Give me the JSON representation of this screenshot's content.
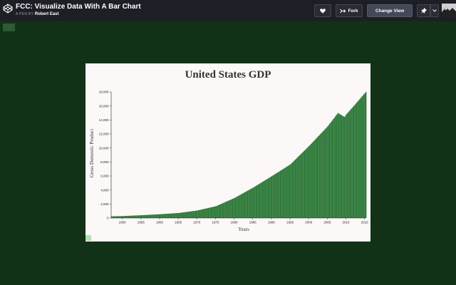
{
  "header": {
    "title": "FCC: Visualize Data With A Bar Chart",
    "byline_prefix": "A PEN BY",
    "author": "Robert East",
    "buttons": {
      "fork": "Fork",
      "change_view": "Change View"
    }
  },
  "colors": {
    "background": "#113216",
    "topbar": "#1e1f26",
    "bar": "#2e7a3a",
    "card": "#fdf8f8"
  },
  "icons": {
    "logo": "codepen-logo-icon",
    "heart": "heart-icon",
    "fork": "fork-icon",
    "pin": "pin-icon",
    "caret": "chevron-down-icon",
    "avatar": "user-avatar-icon"
  },
  "chart_data": {
    "type": "bar",
    "title": "United States GDP",
    "xlabel": "Years",
    "ylabel": "Gross Domestic Product",
    "xlim": [
      1947,
      2015.25
    ],
    "ylim": [
      0,
      18000
    ],
    "y_ticks": [
      "0",
      "2,000",
      "4,000",
      "6,000",
      "8,000",
      "10,000",
      "12,000",
      "14,000",
      "16,000",
      "18,000"
    ],
    "x_ticks": [
      "1950",
      "1955",
      "1960",
      "1965",
      "1970",
      "1975",
      "1980",
      "1985",
      "1990",
      "1995",
      "2000",
      "2005",
      "2010",
      "2015"
    ],
    "series": [
      {
        "x": [
          1947,
          1950,
          1955,
          1960,
          1965,
          1970,
          1975,
          1980,
          1985,
          1990,
          1995,
          2000,
          2005,
          2007.75,
          2009.5,
          2010,
          2012,
          2015.25
        ],
        "values": [
          243,
          280,
          400,
          543,
          719,
          1075,
          1688,
          2863,
          4347,
          5980,
          7664,
          10290,
          13094,
          14992,
          14420,
          14800,
          16000,
          18000
        ]
      }
    ]
  }
}
